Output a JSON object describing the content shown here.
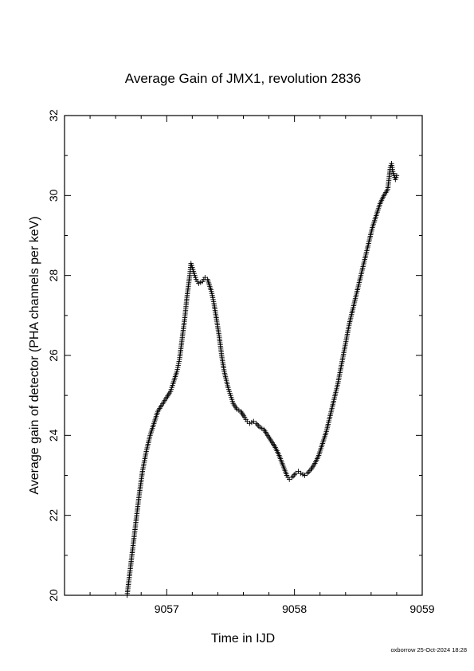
{
  "chart_data": {
    "type": "scatter",
    "title": "Average Gain of JMX1, revolution 2836",
    "xlabel": "Time in IJD",
    "ylabel": "Average gain of detector (PHA channels per keV)",
    "xlim": [
      9056.2,
      9059.0
    ],
    "ylim": [
      20,
      32
    ],
    "x_ticks": [
      9057,
      9058,
      9059
    ],
    "x_tick_labels": [
      "9057",
      "9058",
      "9059"
    ],
    "y_ticks": [
      20,
      22,
      24,
      26,
      28,
      30,
      32
    ],
    "y_tick_labels": [
      "20",
      "22",
      "24",
      "26",
      "28",
      "30",
      "32"
    ],
    "marker": "plus",
    "grid": false,
    "legend": "none",
    "series": [
      {
        "points": [
          [
            9056.69,
            20.0
          ],
          [
            9056.72,
            20.8
          ],
          [
            9056.75,
            21.6
          ],
          [
            9056.78,
            22.4
          ],
          [
            9056.81,
            23.1
          ],
          [
            9056.84,
            23.6
          ],
          [
            9056.87,
            24.0
          ],
          [
            9056.9,
            24.3
          ],
          [
            9056.93,
            24.6
          ],
          [
            9056.96,
            24.75
          ],
          [
            9057.0,
            24.95
          ],
          [
            9057.03,
            25.1
          ],
          [
            9057.05,
            25.3
          ],
          [
            9057.08,
            25.6
          ],
          [
            9057.1,
            25.9
          ],
          [
            9057.12,
            26.4
          ],
          [
            9057.14,
            26.9
          ],
          [
            9057.16,
            27.5
          ],
          [
            9057.18,
            28.0
          ],
          [
            9057.19,
            28.3
          ],
          [
            9057.21,
            28.1
          ],
          [
            9057.23,
            27.9
          ],
          [
            9057.25,
            27.8
          ],
          [
            9057.28,
            27.85
          ],
          [
            9057.3,
            27.95
          ],
          [
            9057.32,
            27.9
          ],
          [
            9057.35,
            27.6
          ],
          [
            9057.37,
            27.3
          ],
          [
            9057.39,
            26.9
          ],
          [
            9057.41,
            26.5
          ],
          [
            9057.43,
            26.0
          ],
          [
            9057.45,
            25.6
          ],
          [
            9057.48,
            25.2
          ],
          [
            9057.5,
            25.0
          ],
          [
            9057.52,
            24.8
          ],
          [
            9057.55,
            24.65
          ],
          [
            9057.58,
            24.6
          ],
          [
            9057.61,
            24.45
          ],
          [
            9057.63,
            24.35
          ],
          [
            9057.65,
            24.3
          ],
          [
            9057.68,
            24.35
          ],
          [
            9057.7,
            24.3
          ],
          [
            9057.73,
            24.2
          ],
          [
            9057.76,
            24.15
          ],
          [
            9057.79,
            24.0
          ],
          [
            9057.82,
            23.85
          ],
          [
            9057.85,
            23.7
          ],
          [
            9057.88,
            23.5
          ],
          [
            9057.91,
            23.25
          ],
          [
            9057.94,
            23.0
          ],
          [
            9057.96,
            22.9
          ],
          [
            9057.98,
            22.95
          ],
          [
            9058.01,
            23.05
          ],
          [
            9058.03,
            23.1
          ],
          [
            9058.05,
            23.05
          ],
          [
            9058.08,
            23.0
          ],
          [
            9058.1,
            23.05
          ],
          [
            9058.13,
            23.15
          ],
          [
            9058.16,
            23.3
          ],
          [
            9058.19,
            23.5
          ],
          [
            9058.22,
            23.8
          ],
          [
            9058.25,
            24.1
          ],
          [
            9058.28,
            24.5
          ],
          [
            9058.31,
            24.9
          ],
          [
            9058.34,
            25.3
          ],
          [
            9058.37,
            25.8
          ],
          [
            9058.4,
            26.3
          ],
          [
            9058.43,
            26.8
          ],
          [
            9058.46,
            27.2
          ],
          [
            9058.49,
            27.6
          ],
          [
            9058.52,
            28.0
          ],
          [
            9058.55,
            28.4
          ],
          [
            9058.58,
            28.8
          ],
          [
            9058.61,
            29.2
          ],
          [
            9058.64,
            29.5
          ],
          [
            9058.67,
            29.8
          ],
          [
            9058.7,
            30.0
          ],
          [
            9058.73,
            30.15
          ],
          [
            9058.75,
            30.7
          ],
          [
            9058.76,
            30.8
          ],
          [
            9058.77,
            30.6
          ],
          [
            9058.79,
            30.4
          ],
          [
            9058.8,
            30.5
          ]
        ]
      }
    ]
  },
  "footer": {
    "text": "oxborrow 25-Oct-2024 18:28"
  }
}
